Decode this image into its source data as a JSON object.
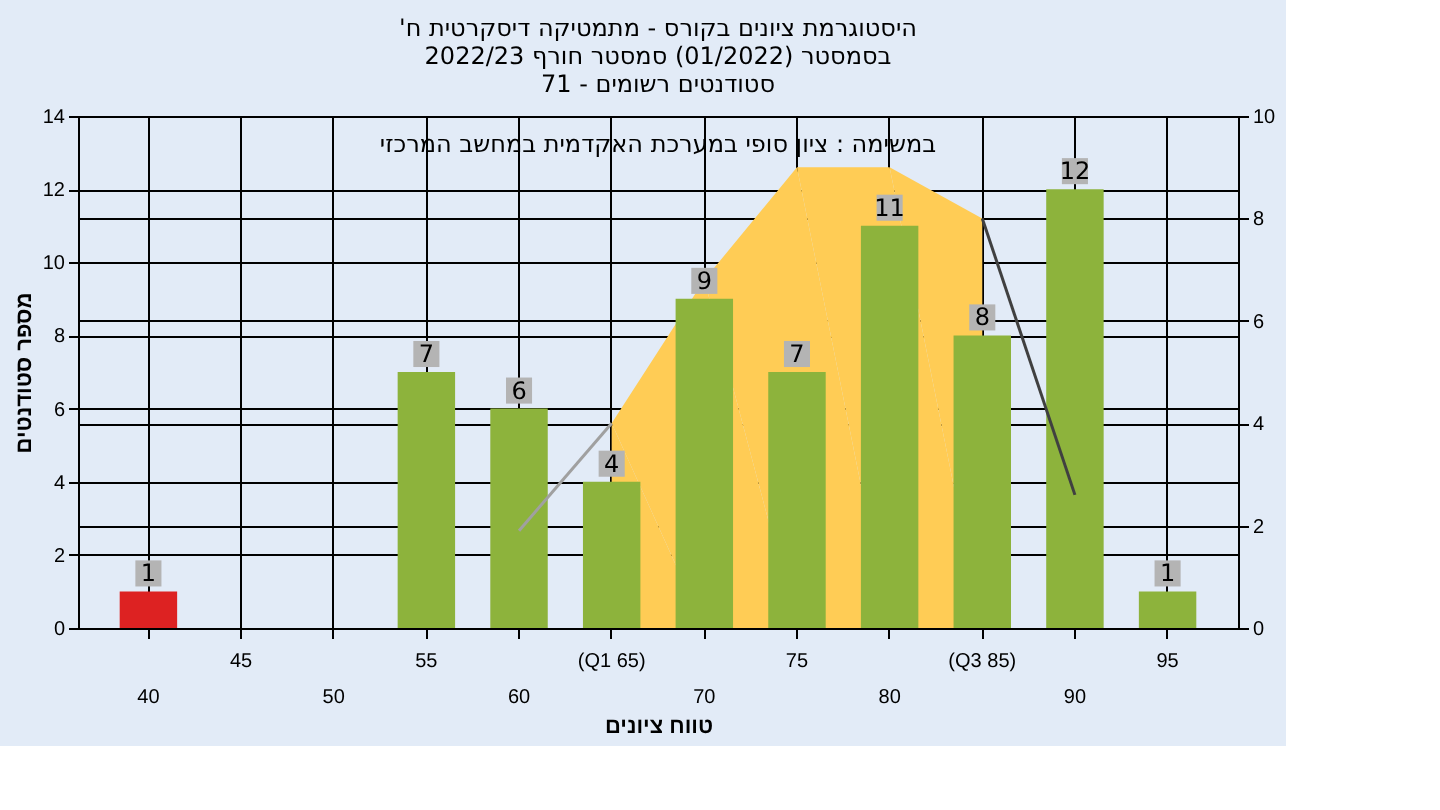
{
  "chart_data": {
    "type": "bar",
    "title": [
      "'היסטוגרמת ציונים בקורס - מתמטיקה דיסקרטית ח",
      "בסמסטר  (01/2022)  סמסטר חורף  2022/23",
      "סטודנטים רשומים - 71"
    ],
    "xlabel": "טווח ציונים",
    "ylabel": "מספר סטודנטים",
    "annotations": [
      "במשימה : ציון סופי במערכת האקדמית במחשב המרכזי"
    ],
    "categories": [
      "40",
      "45",
      "50",
      "55",
      "60",
      "(Q1 65)",
      "70",
      "75",
      "80",
      "(Q3 85)",
      "90",
      "95"
    ],
    "series": [
      {
        "type": "area",
        "axis": "y2",
        "color": "#ffcc55",
        "x": [
          "(Q1 65)",
          "70",
          "75",
          "80",
          "(Q3 85)"
        ],
        "values": [
          4,
          6.8,
          9,
          9,
          8
        ]
      },
      {
        "type": "line",
        "axis": "y2",
        "color": "#a0a0a0",
        "x": [
          "60",
          "(Q1 65)"
        ],
        "values": [
          1.9,
          4
        ]
      },
      {
        "type": "line",
        "axis": "y2",
        "color": "#404040",
        "x": [
          "(Q3 85)",
          "90"
        ],
        "values": [
          8,
          2.6
        ]
      },
      {
        "values": [
          1,
          null,
          null,
          7,
          6,
          4,
          9,
          7,
          11,
          8,
          12,
          1
        ],
        "value_labels": [
          "1",
          null,
          null,
          "7",
          "6",
          "4",
          "9",
          "7",
          "11",
          "8",
          "12",
          "1"
        ],
        "colors": [
          "#dd2222",
          null,
          null,
          "#8db33c",
          "#8db33c",
          "#8db33c",
          "#8db33c",
          "#8db33c",
          "#8db33c",
          "#8db33c",
          "#8db33c",
          "#8db33c"
        ]
      }
    ],
    "ylim": [
      0,
      14
    ],
    "yticks": [
      0,
      2,
      4,
      6,
      8,
      10,
      12,
      14
    ],
    "y2lim": [
      0,
      10
    ],
    "y2ticks": [
      0,
      2,
      4,
      6,
      8,
      10
    ],
    "grid": true
  }
}
